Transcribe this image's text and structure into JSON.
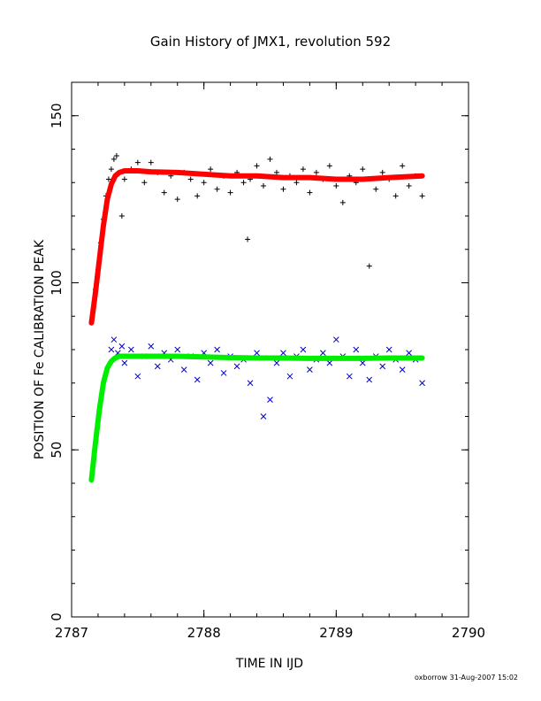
{
  "chart_data": {
    "type": "scatter",
    "title": "Gain History of JMX1, revolution 592",
    "xlabel": "TIME IN IJD",
    "ylabel": "POSITION OF Fe CALIBRATION PEAK",
    "footer": "oxborrow 31-Aug-2007 15:02",
    "xlim": [
      2787,
      2790
    ],
    "ylim": [
      0,
      160
    ],
    "x_ticks": [
      2787,
      2788,
      2789,
      2790
    ],
    "x_tick_labels": [
      "2787",
      "2788",
      "2789",
      "2790"
    ],
    "y_ticks": [
      0,
      50,
      100,
      150
    ],
    "y_tick_labels": [
      "0",
      "50",
      "100",
      "150"
    ],
    "grid": false,
    "legend": "none",
    "series": [
      {
        "marker": "plus",
        "color": "#000000",
        "x": [
          2787.18,
          2787.2,
          2787.22,
          2787.24,
          2787.26,
          2787.28,
          2787.3,
          2787.32,
          2787.34,
          2787.36,
          2787.38,
          2787.4,
          2787.45,
          2787.5,
          2787.55,
          2787.6,
          2787.65,
          2787.7,
          2787.75,
          2787.8,
          2787.85,
          2787.9,
          2787.95,
          2788.0,
          2788.05,
          2788.1,
          2788.15,
          2788.2,
          2788.25,
          2788.3,
          2788.33,
          2788.35,
          2788.4,
          2788.45,
          2788.5,
          2788.55,
          2788.6,
          2788.65,
          2788.7,
          2788.75,
          2788.8,
          2788.85,
          2788.9,
          2788.95,
          2789.0,
          2789.05,
          2789.1,
          2789.15,
          2789.2,
          2789.25,
          2789.3,
          2789.35,
          2789.4,
          2789.45,
          2789.5,
          2789.55,
          2789.6,
          2789.65
        ],
        "y": [
          98,
          104,
          112,
          119,
          126,
          131,
          134,
          137,
          138,
          133,
          120,
          131,
          134,
          136,
          130,
          136,
          133,
          127,
          132,
          125,
          133,
          131,
          126,
          130,
          134,
          128,
          132,
          127,
          133,
          130,
          113,
          131,
          135,
          129,
          137,
          133,
          128,
          132,
          130,
          134,
          127,
          133,
          131,
          135,
          129,
          124,
          132,
          130,
          134,
          105,
          128,
          133,
          131,
          126,
          135,
          129,
          132,
          126
        ]
      },
      {
        "marker": "line",
        "color": "#ff0000",
        "x": [
          2787.15,
          2787.18,
          2787.21,
          2787.24,
          2787.27,
          2787.3,
          2787.33,
          2787.36,
          2787.4,
          2787.5,
          2787.6,
          2787.8,
          2788.0,
          2788.2,
          2788.4,
          2788.6,
          2788.8,
          2789.0,
          2789.2,
          2789.4,
          2789.65
        ],
        "y": [
          88,
          97,
          107,
          117,
          125,
          129.5,
          132,
          133,
          133.5,
          133.5,
          133.2,
          133,
          132.5,
          132,
          132,
          131.5,
          131.5,
          131,
          131,
          131.5,
          132
        ]
      },
      {
        "marker": "cross",
        "color": "#0000cc",
        "x": [
          2787.3,
          2787.32,
          2787.35,
          2787.38,
          2787.4,
          2787.45,
          2787.5,
          2787.55,
          2787.6,
          2787.65,
          2787.7,
          2787.75,
          2787.8,
          2787.85,
          2787.9,
          2787.95,
          2788.0,
          2788.05,
          2788.1,
          2788.15,
          2788.2,
          2788.25,
          2788.3,
          2788.35,
          2788.4,
          2788.45,
          2788.5,
          2788.55,
          2788.6,
          2788.65,
          2788.7,
          2788.75,
          2788.8,
          2788.85,
          2788.9,
          2788.95,
          2789.0,
          2789.05,
          2789.1,
          2789.15,
          2789.2,
          2789.25,
          2789.3,
          2789.35,
          2789.4,
          2789.45,
          2789.5,
          2789.55,
          2789.6,
          2789.65
        ],
        "y": [
          80,
          83,
          79,
          81,
          76,
          80,
          72,
          78,
          81,
          75,
          79,
          77,
          80,
          74,
          78,
          71,
          79,
          76,
          80,
          73,
          78,
          75,
          77,
          70,
          79,
          60,
          65,
          76,
          79,
          72,
          78,
          80,
          74,
          77,
          79,
          76,
          83,
          78,
          72,
          80,
          76,
          71,
          78,
          75,
          80,
          77,
          74,
          79,
          77,
          70
        ]
      },
      {
        "marker": "line",
        "color": "#00ee00",
        "x": [
          2787.15,
          2787.18,
          2787.21,
          2787.24,
          2787.27,
          2787.3,
          2787.33,
          2787.36,
          2787.4,
          2787.5,
          2787.6,
          2787.8,
          2788.0,
          2788.2,
          2788.4,
          2788.6,
          2788.8,
          2789.0,
          2789.2,
          2789.4,
          2789.65
        ],
        "y": [
          41,
          52,
          62,
          70,
          74.5,
          76.5,
          77.5,
          78,
          78,
          78,
          78,
          78,
          77.8,
          77.6,
          77.5,
          77.5,
          77.4,
          77.4,
          77.4,
          77.5,
          77.5
        ]
      }
    ]
  }
}
